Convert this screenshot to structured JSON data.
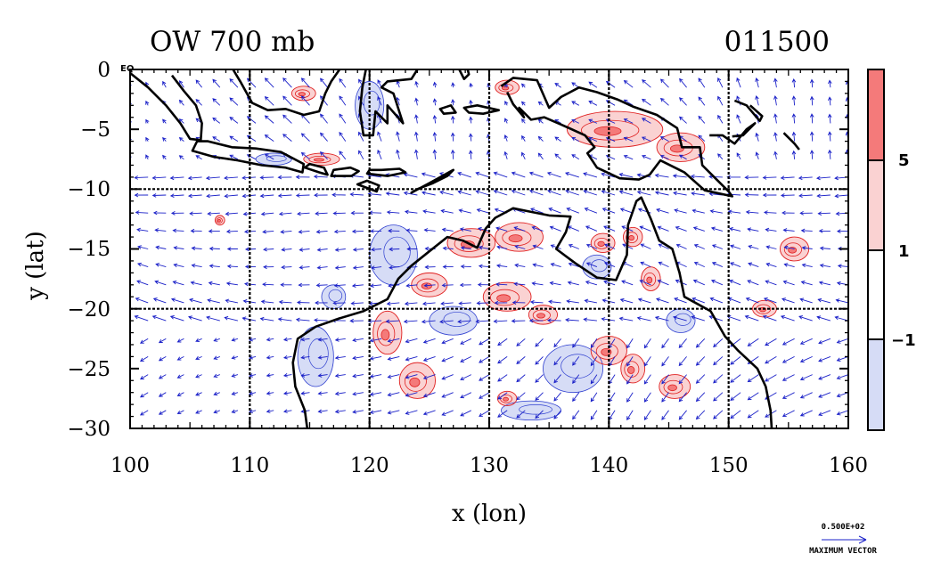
{
  "title": {
    "left": "OW 700 mb",
    "right": "011500"
  },
  "axes": {
    "xlabel": "x (lon)",
    "ylabel": "y (lat)",
    "xlim": [
      100,
      160
    ],
    "ylim": [
      -30,
      0
    ],
    "xticks": [
      "100",
      "110",
      "120",
      "130",
      "140",
      "150",
      "160"
    ],
    "yticks": [
      "0",
      "−5",
      "−10",
      "−15",
      "−20",
      "−25",
      "−30"
    ],
    "eq_marker": "EQ",
    "grid_lon": [
      110,
      120,
      130,
      140,
      150
    ],
    "grid_lat": [
      -10,
      -20
    ]
  },
  "colorbar": {
    "labels": [
      "5",
      "1",
      "−1"
    ],
    "colors": {
      "strong_positive": "#f47a7a",
      "positive": "#fad2d2",
      "neutral": "#ffffff",
      "negative": "#d6dcf6"
    }
  },
  "vector_key": {
    "magnitude": "0.500E+02",
    "label": "MAXIMUM VECTOR"
  },
  "colors": {
    "vectors": "#1a20c8",
    "contour_pos": "#e02020",
    "contour_neg": "#3040d0",
    "coast": "#000000"
  },
  "chart_data": {
    "type": "map",
    "field": "OW 700 mb",
    "time": "011500",
    "contour_levels": [
      -1,
      1,
      5
    ],
    "positive_regions": [
      {
        "lon": 114.5,
        "lat": -2.0,
        "rlon": 1.0,
        "rlat": 0.6
      },
      {
        "lon": 107.5,
        "lat": -12.6,
        "rlon": 0.4,
        "rlat": 0.4
      },
      {
        "lon": 128.5,
        "lat": -14.5,
        "rlon": 2.0,
        "rlat": 1.2
      },
      {
        "lon": 132.5,
        "lat": -14.0,
        "rlon": 2.0,
        "rlat": 1.2
      },
      {
        "lon": 125.0,
        "lat": -18.0,
        "rlon": 1.5,
        "rlat": 1.0
      },
      {
        "lon": 131.5,
        "lat": -19.0,
        "rlon": 2.0,
        "rlat": 1.2
      },
      {
        "lon": 134.5,
        "lat": -20.5,
        "rlon": 1.2,
        "rlat": 0.8
      },
      {
        "lon": 121.5,
        "lat": -22.0,
        "rlon": 1.2,
        "rlat": 1.8
      },
      {
        "lon": 124.0,
        "lat": -26.0,
        "rlon": 1.5,
        "rlat": 1.5
      },
      {
        "lon": 131.5,
        "lat": -27.5,
        "rlon": 0.8,
        "rlat": 0.6
      },
      {
        "lon": 140.0,
        "lat": -23.5,
        "rlon": 1.5,
        "rlat": 1.2
      },
      {
        "lon": 142.0,
        "lat": -25.0,
        "rlon": 1.0,
        "rlat": 1.2
      },
      {
        "lon": 145.5,
        "lat": -26.5,
        "rlon": 1.3,
        "rlat": 1.0
      },
      {
        "lon": 155.5,
        "lat": -15.0,
        "rlon": 1.2,
        "rlat": 1.0
      },
      {
        "lon": 153.0,
        "lat": -20.0,
        "rlon": 1.0,
        "rlat": 0.7
      },
      {
        "lon": 143.5,
        "lat": -17.5,
        "rlon": 0.8,
        "rlat": 1.0
      },
      {
        "lon": 140.5,
        "lat": -5.0,
        "rlon": 4.0,
        "rlat": 1.5
      },
      {
        "lon": 146.0,
        "lat": -6.5,
        "rlon": 2.0,
        "rlat": 1.2
      },
      {
        "lon": 131.5,
        "lat": -1.5,
        "rlon": 1.0,
        "rlat": 0.6
      },
      {
        "lon": 116.0,
        "lat": -7.5,
        "rlon": 1.5,
        "rlat": 0.5
      },
      {
        "lon": 142.0,
        "lat": -14.0,
        "rlon": 0.8,
        "rlat": 0.8
      },
      {
        "lon": 139.5,
        "lat": -14.5,
        "rlon": 1.0,
        "rlat": 0.8
      }
    ],
    "negative_regions": [
      {
        "lon": 122.0,
        "lat": -15.5,
        "rlon": 2.0,
        "rlat": 2.5
      },
      {
        "lon": 127.0,
        "lat": -21.0,
        "rlon": 2.0,
        "rlat": 1.2
      },
      {
        "lon": 115.5,
        "lat": -24.0,
        "rlon": 1.5,
        "rlat": 2.5
      },
      {
        "lon": 137.0,
        "lat": -25.0,
        "rlon": 2.5,
        "rlat": 2.0
      },
      {
        "lon": 133.5,
        "lat": -28.5,
        "rlon": 2.5,
        "rlat": 0.8
      },
      {
        "lon": 139.0,
        "lat": -16.5,
        "rlon": 1.2,
        "rlat": 1.0
      },
      {
        "lon": 146.0,
        "lat": -21.0,
        "rlon": 1.2,
        "rlat": 1.0
      },
      {
        "lon": 117.0,
        "lat": -19.0,
        "rlon": 1.0,
        "rlat": 1.0
      },
      {
        "lon": 120.0,
        "lat": -3.0,
        "rlon": 1.2,
        "rlat": 2.0
      },
      {
        "lon": 112.0,
        "lat": -7.5,
        "rlon": 1.5,
        "rlat": 0.5
      }
    ],
    "coastlines": [
      {
        "name": "australia",
        "closed": false,
        "points": [
          [
            114.8,
            -30
          ],
          [
            114.6,
            -28.5
          ],
          [
            113.8,
            -26.5
          ],
          [
            113.6,
            -24.5
          ],
          [
            114.0,
            -22.5
          ],
          [
            115.5,
            -21.5
          ],
          [
            117.5,
            -20.8
          ],
          [
            119.5,
            -20.2
          ],
          [
            121.5,
            -19.2
          ],
          [
            122.4,
            -17.5
          ],
          [
            123.5,
            -16.4
          ],
          [
            125.0,
            -15.2
          ],
          [
            126.5,
            -14.0
          ],
          [
            127.8,
            -14.3
          ],
          [
            129.0,
            -14.9
          ],
          [
            129.7,
            -13.3
          ],
          [
            130.5,
            -12.4
          ],
          [
            132.0,
            -11.6
          ],
          [
            133.5,
            -11.9
          ],
          [
            135.0,
            -12.2
          ],
          [
            136.8,
            -12.3
          ],
          [
            136.4,
            -13.6
          ],
          [
            135.6,
            -15.0
          ],
          [
            137.2,
            -16.2
          ],
          [
            139.0,
            -17.4
          ],
          [
            140.6,
            -17.6
          ],
          [
            141.5,
            -15.5
          ],
          [
            141.6,
            -13.0
          ],
          [
            142.3,
            -11.0
          ],
          [
            142.7,
            -10.7
          ],
          [
            143.5,
            -12.5
          ],
          [
            144.2,
            -14.3
          ],
          [
            145.3,
            -15.0
          ],
          [
            145.9,
            -17.0
          ],
          [
            146.3,
            -19.0
          ],
          [
            148.5,
            -20.2
          ],
          [
            149.7,
            -22.3
          ],
          [
            150.8,
            -23.5
          ],
          [
            152.4,
            -25.0
          ],
          [
            153.1,
            -26.5
          ],
          [
            153.5,
            -28.5
          ],
          [
            153.6,
            -30
          ]
        ]
      },
      {
        "name": "sumatra",
        "closed": false,
        "points": [
          [
            100.0,
            -0.3
          ],
          [
            101.5,
            -1.5
          ],
          [
            103.0,
            -3.0
          ],
          [
            104.2,
            -4.5
          ],
          [
            105.0,
            -5.8
          ],
          [
            105.9,
            -5.9
          ],
          [
            106.0,
            -4.5
          ],
          [
            105.5,
            -3.0
          ],
          [
            104.5,
            -1.8
          ],
          [
            103.5,
            -0.5
          ]
        ]
      },
      {
        "name": "java",
        "closed": true,
        "points": [
          [
            105.2,
            -6.8
          ],
          [
            107.0,
            -7.3
          ],
          [
            109.0,
            -7.6
          ],
          [
            111.0,
            -8.0
          ],
          [
            113.0,
            -8.2
          ],
          [
            114.4,
            -8.6
          ],
          [
            114.5,
            -7.9
          ],
          [
            112.6,
            -6.9
          ],
          [
            110.5,
            -6.6
          ],
          [
            108.5,
            -6.5
          ],
          [
            106.5,
            -6.0
          ],
          [
            105.6,
            -6.0
          ]
        ]
      },
      {
        "name": "bali_lombok",
        "closed": true,
        "points": [
          [
            114.6,
            -8.2
          ],
          [
            115.8,
            -8.6
          ],
          [
            116.5,
            -8.8
          ],
          [
            116.2,
            -8.2
          ],
          [
            115.0,
            -7.9
          ]
        ]
      },
      {
        "name": "sumbawa",
        "closed": true,
        "points": [
          [
            116.8,
            -8.9
          ],
          [
            118.5,
            -8.9
          ],
          [
            119.1,
            -8.5
          ],
          [
            118.4,
            -8.2
          ],
          [
            117.0,
            -8.4
          ]
        ]
      },
      {
        "name": "flores",
        "closed": true,
        "points": [
          [
            119.8,
            -8.7
          ],
          [
            121.5,
            -8.9
          ],
          [
            123.0,
            -8.6
          ],
          [
            122.5,
            -8.3
          ],
          [
            121.0,
            -8.4
          ],
          [
            120.0,
            -8.4
          ]
        ]
      },
      {
        "name": "sumba",
        "closed": true,
        "points": [
          [
            119.0,
            -9.6
          ],
          [
            120.6,
            -10.2
          ],
          [
            120.8,
            -9.7
          ],
          [
            119.8,
            -9.3
          ]
        ]
      },
      {
        "name": "timor",
        "closed": true,
        "points": [
          [
            123.5,
            -10.3
          ],
          [
            125.0,
            -9.5
          ],
          [
            127.0,
            -8.4
          ],
          [
            126.5,
            -8.9
          ],
          [
            125.3,
            -9.5
          ],
          [
            124.0,
            -10.0
          ]
        ]
      },
      {
        "name": "kalimantan",
        "closed": false,
        "points": [
          [
            108.6,
            0.0
          ],
          [
            109.2,
            -1.0
          ],
          [
            110.2,
            -2.8
          ],
          [
            111.5,
            -3.4
          ],
          [
            113.0,
            -3.3
          ],
          [
            114.5,
            -3.8
          ],
          [
            115.8,
            -3.5
          ],
          [
            116.3,
            -2.0
          ],
          [
            116.8,
            -1.0
          ],
          [
            117.5,
            0.0
          ]
        ]
      },
      {
        "name": "sulawesi",
        "closed": false,
        "points": [
          [
            119.7,
            0.0
          ],
          [
            119.4,
            -1.5
          ],
          [
            119.2,
            -3.5
          ],
          [
            119.5,
            -5.5
          ],
          [
            120.3,
            -5.5
          ],
          [
            120.5,
            -3.5
          ],
          [
            121.5,
            -4.5
          ],
          [
            121.5,
            -3.0
          ],
          [
            122.8,
            -4.5
          ],
          [
            122.0,
            -2.0
          ],
          [
            121.0,
            -1.5
          ],
          [
            121.5,
            -1.0
          ],
          [
            123.5,
            -0.8
          ],
          [
            124.0,
            0.0
          ]
        ]
      },
      {
        "name": "halmahera",
        "closed": false,
        "points": [
          [
            127.5,
            0.0
          ],
          [
            127.9,
            -0.8
          ],
          [
            128.3,
            -0.4
          ],
          [
            128.2,
            0.0
          ]
        ]
      },
      {
        "name": "seram",
        "closed": true,
        "points": [
          [
            127.9,
            -3.2
          ],
          [
            129.0,
            -3.0
          ],
          [
            130.8,
            -3.4
          ],
          [
            129.5,
            -3.7
          ],
          [
            128.3,
            -3.6
          ]
        ]
      },
      {
        "name": "buru",
        "closed": true,
        "points": [
          [
            125.9,
            -3.3
          ],
          [
            126.8,
            -3.0
          ],
          [
            127.2,
            -3.6
          ],
          [
            126.2,
            -3.7
          ]
        ]
      },
      {
        "name": "new_guinea",
        "closed": false,
        "points": [
          [
            131.0,
            -1.4
          ],
          [
            132.0,
            -0.7
          ],
          [
            134.0,
            -0.9
          ],
          [
            135.0,
            -3.2
          ],
          [
            136.0,
            -2.3
          ],
          [
            137.5,
            -1.5
          ],
          [
            139.0,
            -1.9
          ],
          [
            140.7,
            -2.5
          ],
          [
            142.0,
            -3.1
          ],
          [
            144.0,
            -3.8
          ],
          [
            145.7,
            -4.9
          ],
          [
            146.1,
            -6.5
          ],
          [
            147.6,
            -6.5
          ],
          [
            147.8,
            -8.0
          ],
          [
            149.0,
            -9.2
          ],
          [
            150.0,
            -10.2
          ],
          [
            150.3,
            -10.6
          ],
          [
            148.0,
            -10.1
          ],
          [
            146.3,
            -8.6
          ],
          [
            144.3,
            -7.6
          ],
          [
            143.4,
            -8.8
          ],
          [
            142.5,
            -9.2
          ],
          [
            140.9,
            -9.1
          ],
          [
            139.0,
            -8.2
          ],
          [
            138.2,
            -7.0
          ],
          [
            138.8,
            -6.5
          ],
          [
            138.0,
            -5.5
          ],
          [
            136.0,
            -4.6
          ],
          [
            134.6,
            -4.0
          ],
          [
            133.5,
            -4.2
          ],
          [
            132.5,
            -3.2
          ],
          [
            132.9,
            -4.0
          ],
          [
            132.0,
            -2.9
          ],
          [
            131.5,
            -1.9
          ]
        ]
      },
      {
        "name": "new_britain",
        "closed": false,
        "points": [
          [
            148.4,
            -5.5
          ],
          [
            149.5,
            -5.5
          ],
          [
            150.5,
            -6.2
          ],
          [
            151.5,
            -5.0
          ],
          [
            152.2,
            -4.5
          ],
          [
            151.2,
            -5.5
          ],
          [
            150.3,
            -5.6
          ]
        ]
      },
      {
        "name": "new_ireland",
        "closed": false,
        "points": [
          [
            150.5,
            -2.6
          ],
          [
            151.5,
            -3.0
          ],
          [
            152.6,
            -4.3
          ],
          [
            152.8,
            -3.9
          ],
          [
            151.8,
            -3.0
          ]
        ]
      },
      {
        "name": "bougainville",
        "closed": false,
        "points": [
          [
            154.6,
            -5.3
          ],
          [
            155.5,
            -6.2
          ],
          [
            155.9,
            -6.7
          ]
        ]
      }
    ]
  }
}
